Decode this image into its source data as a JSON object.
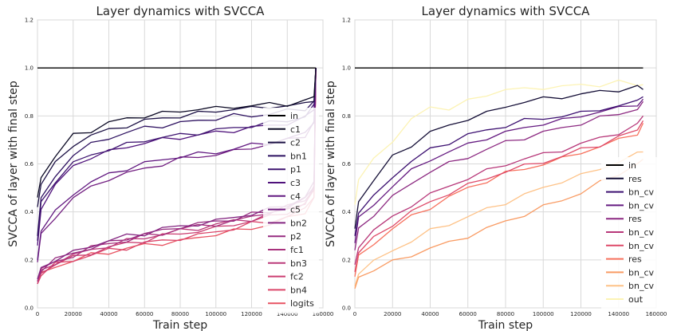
{
  "chart_data": [
    {
      "type": "line",
      "title": "Layer dynamics with SVCCA",
      "xlabel": "Train step",
      "ylabel": "SVCCA of layer with final step",
      "xlim": [
        0,
        160000
      ],
      "ylim": [
        0.0,
        1.2
      ],
      "xticks": [
        "0",
        "20000",
        "40000",
        "60000",
        "80000",
        "100000",
        "120000",
        "140000",
        "160000"
      ],
      "yticks": [
        "0.0",
        "0.2",
        "0.4",
        "0.6",
        "0.8",
        "1.0",
        "1.2"
      ],
      "grid": true,
      "legend": "lower-right",
      "x": [
        0,
        2000,
        10000,
        20000,
        30000,
        40000,
        50000,
        60000,
        70000,
        80000,
        90000,
        100000,
        110000,
        120000,
        130000,
        140000,
        150000,
        155000,
        156000
      ],
      "series": [
        {
          "name": "in",
          "color": "#000000",
          "values": [
            1.0,
            1.0,
            1.0,
            1.0,
            1.0,
            1.0,
            1.0,
            1.0,
            1.0,
            1.0,
            1.0,
            1.0,
            1.0,
            1.0,
            1.0,
            1.0,
            1.0,
            1.0,
            1.0
          ]
        },
        {
          "name": "c1",
          "color": "#0b0924",
          "values": [
            0.46,
            0.55,
            0.63,
            0.72,
            0.74,
            0.77,
            0.79,
            0.8,
            0.81,
            0.82,
            0.83,
            0.83,
            0.84,
            0.84,
            0.85,
            0.85,
            0.86,
            0.88,
            1.0
          ]
        },
        {
          "name": "c2",
          "color": "#1b1044",
          "values": [
            0.42,
            0.52,
            0.6,
            0.68,
            0.72,
            0.74,
            0.76,
            0.78,
            0.79,
            0.8,
            0.81,
            0.82,
            0.83,
            0.83,
            0.84,
            0.84,
            0.85,
            0.87,
            1.0
          ]
        },
        {
          "name": "bn1",
          "color": "#2d1160",
          "values": [
            0.3,
            0.45,
            0.55,
            0.64,
            0.68,
            0.71,
            0.73,
            0.75,
            0.76,
            0.77,
            0.78,
            0.79,
            0.8,
            0.8,
            0.81,
            0.82,
            0.83,
            0.86,
            1.0
          ]
        },
        {
          "name": "p1",
          "color": "#3e1470",
          "values": [
            0.28,
            0.44,
            0.53,
            0.6,
            0.64,
            0.66,
            0.68,
            0.7,
            0.71,
            0.72,
            0.73,
            0.74,
            0.75,
            0.76,
            0.77,
            0.78,
            0.8,
            0.84,
            1.0
          ]
        },
        {
          "name": "c3",
          "color": "#4f127b",
          "values": [
            0.26,
            0.42,
            0.51,
            0.59,
            0.63,
            0.65,
            0.67,
            0.69,
            0.7,
            0.71,
            0.72,
            0.73,
            0.74,
            0.75,
            0.76,
            0.77,
            0.79,
            0.83,
            1.0
          ]
        },
        {
          "name": "c4",
          "color": "#611880",
          "values": [
            0.2,
            0.32,
            0.4,
            0.48,
            0.52,
            0.56,
            0.58,
            0.6,
            0.62,
            0.63,
            0.64,
            0.65,
            0.66,
            0.68,
            0.69,
            0.7,
            0.73,
            0.78,
            1.0
          ]
        },
        {
          "name": "c5",
          "color": "#721f81",
          "values": [
            0.19,
            0.3,
            0.38,
            0.46,
            0.5,
            0.54,
            0.56,
            0.58,
            0.6,
            0.62,
            0.63,
            0.64,
            0.65,
            0.67,
            0.68,
            0.7,
            0.72,
            0.77,
            1.0
          ]
        },
        {
          "name": "bn2",
          "color": "#842681",
          "values": [
            0.12,
            0.17,
            0.2,
            0.23,
            0.26,
            0.28,
            0.3,
            0.31,
            0.33,
            0.34,
            0.35,
            0.36,
            0.38,
            0.39,
            0.41,
            0.43,
            0.46,
            0.52,
            1.0
          ]
        },
        {
          "name": "p2",
          "color": "#962c80",
          "values": [
            0.12,
            0.16,
            0.2,
            0.23,
            0.25,
            0.27,
            0.29,
            0.31,
            0.32,
            0.34,
            0.35,
            0.36,
            0.37,
            0.39,
            0.4,
            0.42,
            0.45,
            0.51,
            1.0
          ]
        },
        {
          "name": "fc1",
          "color": "#a8327d",
          "values": [
            0.11,
            0.16,
            0.19,
            0.22,
            0.25,
            0.27,
            0.28,
            0.3,
            0.31,
            0.33,
            0.34,
            0.35,
            0.36,
            0.38,
            0.4,
            0.42,
            0.45,
            0.5,
            1.0
          ]
        },
        {
          "name": "bn3",
          "color": "#ba3878",
          "values": [
            0.11,
            0.15,
            0.19,
            0.22,
            0.24,
            0.26,
            0.28,
            0.29,
            0.31,
            0.32,
            0.33,
            0.35,
            0.36,
            0.37,
            0.39,
            0.41,
            0.44,
            0.5,
            1.0
          ]
        },
        {
          "name": "fc2",
          "color": "#cb3e71",
          "values": [
            0.1,
            0.15,
            0.18,
            0.21,
            0.23,
            0.25,
            0.27,
            0.28,
            0.3,
            0.31,
            0.32,
            0.33,
            0.35,
            0.36,
            0.38,
            0.4,
            0.43,
            0.49,
            1.0
          ]
        },
        {
          "name": "bn4",
          "color": "#db476a",
          "values": [
            0.1,
            0.14,
            0.18,
            0.2,
            0.22,
            0.24,
            0.25,
            0.27,
            0.28,
            0.29,
            0.3,
            0.32,
            0.33,
            0.35,
            0.36,
            0.38,
            0.41,
            0.47,
            1.0
          ]
        },
        {
          "name": "logits",
          "color": "#e85362",
          "values": [
            0.1,
            0.14,
            0.17,
            0.2,
            0.22,
            0.23,
            0.25,
            0.26,
            0.27,
            0.28,
            0.29,
            0.31,
            0.32,
            0.33,
            0.35,
            0.37,
            0.4,
            0.46,
            1.0
          ]
        }
      ]
    },
    {
      "type": "line",
      "title": "Layer dynamics with SVCCA",
      "xlabel": "Train step",
      "ylabel": "SVCCA of layer with final step",
      "xlim": [
        0,
        160000
      ],
      "ylim": [
        0.0,
        1.2
      ],
      "xticks": [
        "0",
        "20000",
        "40000",
        "60000",
        "80000",
        "100000",
        "120000",
        "140000",
        "160000"
      ],
      "yticks": [
        "0.0",
        "0.2",
        "0.4",
        "0.6",
        "0.8",
        "1.0",
        "1.2"
      ],
      "grid": true,
      "legend": "lower-right",
      "x": [
        0,
        2000,
        10000,
        20000,
        30000,
        40000,
        50000,
        60000,
        70000,
        80000,
        90000,
        100000,
        110000,
        120000,
        130000,
        140000,
        150000,
        153000
      ],
      "series": [
        {
          "name": "in",
          "color": "#000000",
          "values": [
            1.0,
            1.0,
            1.0,
            1.0,
            1.0,
            1.0,
            1.0,
            1.0,
            1.0,
            1.0,
            1.0,
            1.0,
            1.0,
            1.0,
            1.0,
            1.0,
            1.0,
            1.0
          ]
        },
        {
          "name": "res",
          "color": "#140e36",
          "values": [
            0.33,
            0.45,
            0.53,
            0.63,
            0.68,
            0.73,
            0.76,
            0.79,
            0.81,
            0.84,
            0.86,
            0.87,
            0.88,
            0.89,
            0.9,
            0.91,
            0.92,
            0.91
          ]
        },
        {
          "name": "bn_cv",
          "color": "#3b0f70",
          "values": [
            0.3,
            0.4,
            0.46,
            0.55,
            0.61,
            0.66,
            0.69,
            0.72,
            0.74,
            0.76,
            0.78,
            0.79,
            0.8,
            0.81,
            0.83,
            0.84,
            0.86,
            0.88
          ]
        },
        {
          "name": "bn_cv",
          "color": "#641a80",
          "values": [
            0.27,
            0.37,
            0.43,
            0.51,
            0.57,
            0.62,
            0.65,
            0.68,
            0.71,
            0.73,
            0.75,
            0.77,
            0.78,
            0.8,
            0.82,
            0.83,
            0.85,
            0.87
          ]
        },
        {
          "name": "res",
          "color": "#8c2981",
          "values": [
            0.24,
            0.33,
            0.39,
            0.46,
            0.52,
            0.57,
            0.6,
            0.63,
            0.66,
            0.69,
            0.71,
            0.73,
            0.75,
            0.77,
            0.79,
            0.81,
            0.83,
            0.86
          ]
        },
        {
          "name": "bn_cv",
          "color": "#b73779",
          "values": [
            0.18,
            0.26,
            0.32,
            0.38,
            0.43,
            0.47,
            0.51,
            0.54,
            0.57,
            0.6,
            0.62,
            0.64,
            0.66,
            0.68,
            0.71,
            0.73,
            0.76,
            0.8
          ]
        },
        {
          "name": "bn_cv",
          "color": "#de4968",
          "values": [
            0.15,
            0.23,
            0.29,
            0.35,
            0.4,
            0.44,
            0.48,
            0.51,
            0.54,
            0.57,
            0.59,
            0.61,
            0.63,
            0.66,
            0.68,
            0.71,
            0.74,
            0.78
          ]
        },
        {
          "name": "res",
          "color": "#f7705c",
          "values": [
            0.13,
            0.21,
            0.27,
            0.33,
            0.38,
            0.42,
            0.46,
            0.5,
            0.53,
            0.56,
            0.58,
            0.6,
            0.62,
            0.65,
            0.67,
            0.7,
            0.73,
            0.77
          ]
        },
        {
          "name": "bn_cv",
          "color": "#f99b63",
          "values": [
            0.08,
            0.13,
            0.16,
            0.19,
            0.22,
            0.25,
            0.27,
            0.3,
            0.33,
            0.36,
            0.39,
            0.42,
            0.45,
            0.48,
            0.52,
            0.56,
            0.6,
            0.62
          ]
        },
        {
          "name": "bn_cv",
          "color": "#fec287",
          "values": [
            0.09,
            0.15,
            0.19,
            0.24,
            0.28,
            0.32,
            0.35,
            0.38,
            0.41,
            0.44,
            0.47,
            0.5,
            0.53,
            0.55,
            0.58,
            0.61,
            0.64,
            0.65
          ]
        },
        {
          "name": "out",
          "color": "#fcf3b4",
          "values": [
            0.43,
            0.53,
            0.62,
            0.7,
            0.78,
            0.84,
            0.83,
            0.86,
            0.89,
            0.91,
            0.91,
            0.92,
            0.92,
            0.93,
            0.93,
            0.94,
            0.93,
            0.93
          ]
        }
      ]
    }
  ]
}
